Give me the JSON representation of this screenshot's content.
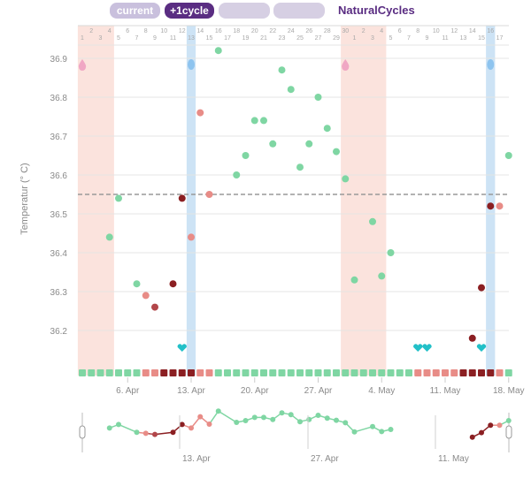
{
  "toolbar": {
    "current_label": "current",
    "plus_cycle_label": "+1cycle",
    "brand": "NaturalCycles"
  },
  "colors": {
    "period_band": "#fbe3dd",
    "ovulation_band": "#cde3f5",
    "green": "#7fd6a3",
    "light_red": "#e88c87",
    "dark_red": "#8b1f22",
    "cover_line": "#999999",
    "heart": "#22c0c8",
    "brand": "#5a2d82"
  },
  "chart_data": {
    "type": "scatter",
    "title": "",
    "ylabel": "Temperatur (° C)",
    "ylim": [
      36.1,
      37.0
    ],
    "y_ticks": [
      36.2,
      36.3,
      36.4,
      36.5,
      36.6,
      36.7,
      36.8,
      36.9
    ],
    "cover_line": 36.55,
    "x_range": [
      "2024-04-01",
      "2024-05-18"
    ],
    "date_ticks": [
      {
        "date": "2024-04-06",
        "label": "6. Apr"
      },
      {
        "date": "2024-04-13",
        "label": "13. Apr"
      },
      {
        "date": "2024-04-20",
        "label": "20. Apr"
      },
      {
        "date": "2024-04-27",
        "label": "27. Apr"
      },
      {
        "date": "2024-05-04",
        "label": "4. May"
      },
      {
        "date": "2024-05-11",
        "label": "11. May"
      },
      {
        "date": "2024-05-18",
        "label": "18. May"
      }
    ],
    "day_of_month_row": [
      "2",
      "4",
      "6",
      "8",
      "10",
      "12",
      "14",
      "16",
      "18",
      "20",
      "22",
      "24",
      "26",
      "28",
      "30",
      "2",
      "4",
      "6",
      "8",
      "10",
      "12",
      "14",
      "16"
    ],
    "cycle_day_row": [
      "1",
      "3",
      "5",
      "7",
      "9",
      "11",
      "13",
      "15",
      "17",
      "19",
      "21",
      "23",
      "25",
      "27",
      "29",
      "1",
      "3",
      "5",
      "7",
      "9",
      "11",
      "13",
      "15",
      "17"
    ],
    "period_bands": [
      [
        "2024-04-01",
        "2024-04-04"
      ],
      [
        "2024-04-30",
        "2024-05-04"
      ]
    ],
    "ovulation_bands": [
      [
        "2024-04-13",
        "2024-04-13"
      ],
      [
        "2024-05-16",
        "2024-05-16"
      ]
    ],
    "series": [
      {
        "color": "green",
        "points": [
          [
            "2024-04-04",
            36.44
          ],
          [
            "2024-04-05",
            36.54
          ],
          [
            "2024-04-07",
            36.32
          ],
          [
            "2024-04-16",
            36.92
          ],
          [
            "2024-04-18",
            36.6
          ],
          [
            "2024-04-19",
            36.65
          ],
          [
            "2024-04-20",
            36.74
          ],
          [
            "2024-04-21",
            36.74
          ],
          [
            "2024-04-22",
            36.68
          ],
          [
            "2024-04-23",
            36.87
          ],
          [
            "2024-04-24",
            36.82
          ],
          [
            "2024-04-25",
            36.62
          ],
          [
            "2024-04-26",
            36.68
          ],
          [
            "2024-04-27",
            36.8
          ],
          [
            "2024-04-28",
            36.72
          ],
          [
            "2024-04-29",
            36.66
          ],
          [
            "2024-04-30",
            36.59
          ],
          [
            "2024-05-01",
            36.33
          ],
          [
            "2024-05-03",
            36.48
          ],
          [
            "2024-05-04",
            36.34
          ],
          [
            "2024-05-05",
            36.4
          ],
          [
            "2024-05-18",
            36.65
          ]
        ]
      },
      {
        "color": "light_red",
        "points": [
          [
            "2024-04-08",
            36.29
          ],
          [
            "2024-04-13",
            36.44
          ],
          [
            "2024-04-14",
            36.76
          ],
          [
            "2024-04-15",
            36.55
          ],
          [
            "2024-05-17",
            36.52
          ]
        ]
      },
      {
        "color": "mid_red",
        "points": [
          [
            "2024-04-09",
            36.26
          ]
        ]
      },
      {
        "color": "dark_red",
        "points": [
          [
            "2024-04-11",
            36.32
          ],
          [
            "2024-04-12",
            36.54
          ],
          [
            "2024-05-14",
            36.18
          ],
          [
            "2024-05-15",
            36.31
          ],
          [
            "2024-05-16",
            36.52
          ]
        ]
      }
    ],
    "markers": [
      {
        "date": "2024-04-01",
        "kind": "period-drop"
      },
      {
        "date": "2024-04-13",
        "kind": "ovulation-drop"
      },
      {
        "date": "2024-04-30",
        "kind": "period-drop"
      },
      {
        "date": "2024-05-16",
        "kind": "ovulation-drop"
      },
      {
        "date": "2024-04-12",
        "kind": "heart"
      },
      {
        "date": "2024-05-08",
        "kind": "heart"
      },
      {
        "date": "2024-05-09",
        "kind": "heart"
      },
      {
        "date": "2024-05-15",
        "kind": "heart"
      }
    ],
    "day_status": [
      "g",
      "g",
      "g",
      "g",
      "g",
      "g",
      "g",
      "l",
      "l",
      "d",
      "d",
      "d",
      "d",
      "l",
      "l",
      "g",
      "g",
      "g",
      "g",
      "g",
      "g",
      "g",
      "g",
      "g",
      "g",
      "g",
      "g",
      "g",
      "g",
      "g",
      "g",
      "g",
      "g",
      "g",
      "g",
      "g",
      "g",
      "l",
      "l",
      "l",
      "l",
      "l",
      "d",
      "d",
      "d",
      "d",
      "l",
      "g"
    ]
  },
  "navigator": {
    "date_labels": [
      "13. Apr",
      "27. Apr",
      "11. May"
    ]
  }
}
